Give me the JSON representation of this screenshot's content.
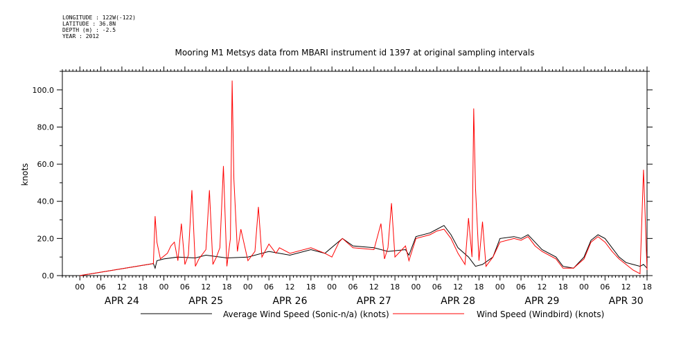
{
  "header": {
    "longitude": "LONGITUDE : 122W(-122)",
    "latitude": "LATITUDE : 36.8N",
    "depth": "DEPTH (m) : -2.5",
    "year": "YEAR : 2012"
  },
  "chart_data": {
    "type": "line",
    "title": "Mooring M1 Metsys data from MBARI instrument id 1397 at original sampling intervals",
    "ylabel": "knots",
    "xlabel": "",
    "ylim": [
      0,
      110
    ],
    "yticks": [
      0,
      20,
      40,
      60,
      80,
      100
    ],
    "ytick_labels": [
      "0.0",
      "20.0",
      "40.0",
      "60.0",
      "80.0",
      "100.0"
    ],
    "xlim_hours": [
      -5,
      162
    ],
    "x_hour_tick_labels": [
      "00",
      "06",
      "12",
      "18",
      "00",
      "06",
      "12",
      "18",
      "00",
      "06",
      "12",
      "18",
      "00",
      "06",
      "12",
      "18",
      "00",
      "06",
      "12",
      "18",
      "00",
      "06",
      "12",
      "18",
      "00",
      "06",
      "12",
      "18"
    ],
    "x_day_labels": [
      "APR 24",
      "APR 25",
      "APR 26",
      "APR 27",
      "APR 28",
      "APR 29",
      "APR 30"
    ],
    "legend_position": "bottom",
    "series": [
      {
        "name": "Average Wind Speed (Sonic-n/a) (knots)",
        "color": "#000000",
        "points": [
          [
            0,
            0
          ],
          [
            21,
            6.5
          ],
          [
            21.5,
            4
          ],
          [
            22,
            8
          ],
          [
            24,
            9
          ],
          [
            28,
            10
          ],
          [
            33,
            9.5
          ],
          [
            36,
            11
          ],
          [
            42,
            9.5
          ],
          [
            48,
            10
          ],
          [
            54,
            13
          ],
          [
            60,
            11
          ],
          [
            66,
            14
          ],
          [
            70,
            12
          ],
          [
            75,
            20
          ],
          [
            78,
            16
          ],
          [
            84,
            15
          ],
          [
            88,
            13
          ],
          [
            93,
            14
          ],
          [
            94,
            11
          ],
          [
            96,
            21
          ],
          [
            100,
            23
          ],
          [
            102,
            25
          ],
          [
            104,
            27
          ],
          [
            106,
            22
          ],
          [
            108,
            15
          ],
          [
            111,
            10
          ],
          [
            113,
            5
          ],
          [
            115,
            6
          ],
          [
            118,
            10
          ],
          [
            120,
            20
          ],
          [
            124,
            21
          ],
          [
            126,
            20
          ],
          [
            128,
            22
          ],
          [
            130,
            18
          ],
          [
            132,
            14
          ],
          [
            136,
            10
          ],
          [
            138,
            5
          ],
          [
            141,
            4
          ],
          [
            144,
            10
          ],
          [
            146,
            19
          ],
          [
            148,
            22
          ],
          [
            150,
            20
          ],
          [
            152,
            15
          ],
          [
            154,
            10
          ],
          [
            156,
            7
          ],
          [
            158,
            6
          ],
          [
            160,
            5
          ],
          [
            161,
            6
          ],
          [
            162,
            4
          ]
        ]
      },
      {
        "name": "Wind Speed (Windbird) (knots)",
        "color": "#ff0000",
        "points": [
          [
            0,
            0
          ],
          [
            21,
            6.5
          ],
          [
            21.5,
            32
          ],
          [
            22,
            18
          ],
          [
            23,
            9
          ],
          [
            25,
            12
          ],
          [
            26,
            16
          ],
          [
            27,
            18
          ],
          [
            28,
            8
          ],
          [
            29,
            28
          ],
          [
            30,
            6
          ],
          [
            31,
            11
          ],
          [
            32,
            46
          ],
          [
            33,
            5
          ],
          [
            34,
            9
          ],
          [
            36,
            14
          ],
          [
            37,
            46
          ],
          [
            38,
            6
          ],
          [
            39,
            10
          ],
          [
            40,
            15
          ],
          [
            41,
            59
          ],
          [
            42,
            5
          ],
          [
            43,
            20
          ],
          [
            43.5,
            105
          ],
          [
            44,
            52
          ],
          [
            45,
            13
          ],
          [
            46,
            25
          ],
          [
            48,
            8
          ],
          [
            50,
            13
          ],
          [
            51,
            37
          ],
          [
            52,
            10
          ],
          [
            54,
            17
          ],
          [
            56,
            12
          ],
          [
            57,
            15
          ],
          [
            60,
            12
          ],
          [
            66,
            15
          ],
          [
            70,
            12
          ],
          [
            72,
            10
          ],
          [
            74,
            18
          ],
          [
            75,
            20
          ],
          [
            78,
            15
          ],
          [
            84,
            14
          ],
          [
            86,
            28
          ],
          [
            87,
            9
          ],
          [
            88,
            15
          ],
          [
            89,
            39
          ],
          [
            90,
            10
          ],
          [
            93,
            16
          ],
          [
            94,
            8
          ],
          [
            96,
            20
          ],
          [
            100,
            22
          ],
          [
            102,
            24
          ],
          [
            104,
            25
          ],
          [
            106,
            20
          ],
          [
            108,
            12
          ],
          [
            110,
            6
          ],
          [
            111,
            31
          ],
          [
            112,
            10
          ],
          [
            112.5,
            90
          ],
          [
            113,
            47
          ],
          [
            114,
            8
          ],
          [
            115,
            29
          ],
          [
            116,
            5
          ],
          [
            118,
            10
          ],
          [
            120,
            18
          ],
          [
            124,
            20
          ],
          [
            126,
            19
          ],
          [
            128,
            21
          ],
          [
            130,
            16
          ],
          [
            132,
            13
          ],
          [
            136,
            9
          ],
          [
            138,
            4
          ],
          [
            141,
            4
          ],
          [
            144,
            9
          ],
          [
            146,
            18
          ],
          [
            148,
            21
          ],
          [
            150,
            18
          ],
          [
            152,
            13
          ],
          [
            154,
            9
          ],
          [
            156,
            6
          ],
          [
            158,
            3
          ],
          [
            160,
            1
          ],
          [
            161,
            57
          ],
          [
            161.5,
            30
          ],
          [
            162,
            3
          ]
        ]
      }
    ]
  }
}
